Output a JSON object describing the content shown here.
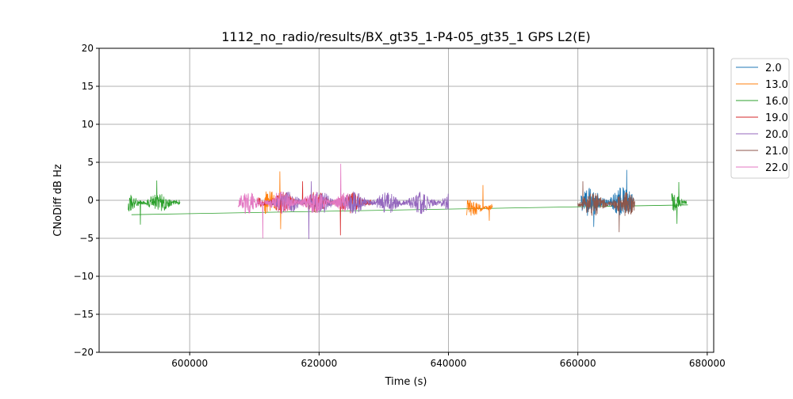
{
  "chart_data": {
    "type": "line",
    "title": "1112_no_radio/results/BX_gt35_1-P4-05_gt35_1 GPS L2(E)",
    "xlabel": "Time (s)",
    "ylabel": "CNoDiff dB Hz",
    "xlim": [
      586000,
      681000
    ],
    "ylim": [
      -20,
      20
    ],
    "xticks": [
      600000,
      620000,
      640000,
      660000,
      680000
    ],
    "xtick_labels": [
      "600000",
      "620000",
      "640000",
      "660000",
      "680000"
    ],
    "yticks": [
      -20,
      -15,
      -10,
      -5,
      0,
      5,
      10,
      15,
      20
    ],
    "ytick_labels": [
      "−20",
      "−15",
      "−10",
      "−5",
      "0",
      "5",
      "10",
      "15",
      "20"
    ],
    "grid": true,
    "legend_position": "outside-right-top",
    "series": [
      {
        "name": "2.0",
        "color": "#1f77b4",
        "segments": [
          {
            "x0": 660500,
            "x1": 668700,
            "mean": -0.2,
            "amp": 2.0,
            "spike_max": 4.0,
            "spike_min": -3.5
          }
        ]
      },
      {
        "name": "13.0",
        "color": "#ff7f0e",
        "segments": [
          {
            "x0": 611500,
            "x1": 615000,
            "mean": -0.2,
            "amp": 1.8,
            "spike_max": 3.8,
            "spike_min": -3.8
          },
          {
            "x0": 642800,
            "x1": 646800,
            "mean": -1.0,
            "amp": 1.3,
            "spike_max": 2.0,
            "spike_min": -2.7
          }
        ]
      },
      {
        "name": "16.0",
        "color": "#2ca02c",
        "segments": [
          {
            "x0": 590500,
            "x1": 598500,
            "mean": -0.3,
            "amp": 1.3,
            "spike_max": 2.6,
            "spike_min": -3.2
          },
          {
            "x0": 674500,
            "x1": 676800,
            "mean": -0.3,
            "amp": 1.3,
            "spike_max": 2.4,
            "spike_min": -3.1
          }
        ],
        "trend": {
          "x": [
            591000,
            677000
          ],
          "y": [
            -1.9,
            -0.6
          ]
        }
      },
      {
        "name": "19.0",
        "color": "#d62728",
        "segments": [
          {
            "x0": 610500,
            "x1": 628000,
            "mean": -0.3,
            "amp": 1.5,
            "spike_max": 2.5,
            "spike_min": -4.6
          }
        ]
      },
      {
        "name": "20.0",
        "color": "#9467bd",
        "segments": [
          {
            "x0": 612000,
            "x1": 640000,
            "mean": -0.3,
            "amp": 1.5,
            "spike_max": 2.5,
            "spike_min": -5.1
          }
        ]
      },
      {
        "name": "21.0",
        "color": "#8c564b",
        "segments": [
          {
            "x0": 660000,
            "x1": 668800,
            "mean": -0.5,
            "amp": 1.6,
            "spike_max": 2.5,
            "spike_min": -4.2
          }
        ]
      },
      {
        "name": "22.0",
        "color": "#e377c2",
        "segments": [
          {
            "x0": 607500,
            "x1": 624500,
            "mean": -0.3,
            "amp": 1.5,
            "spike_max": 4.8,
            "spike_min": -5.0
          }
        ]
      }
    ]
  }
}
